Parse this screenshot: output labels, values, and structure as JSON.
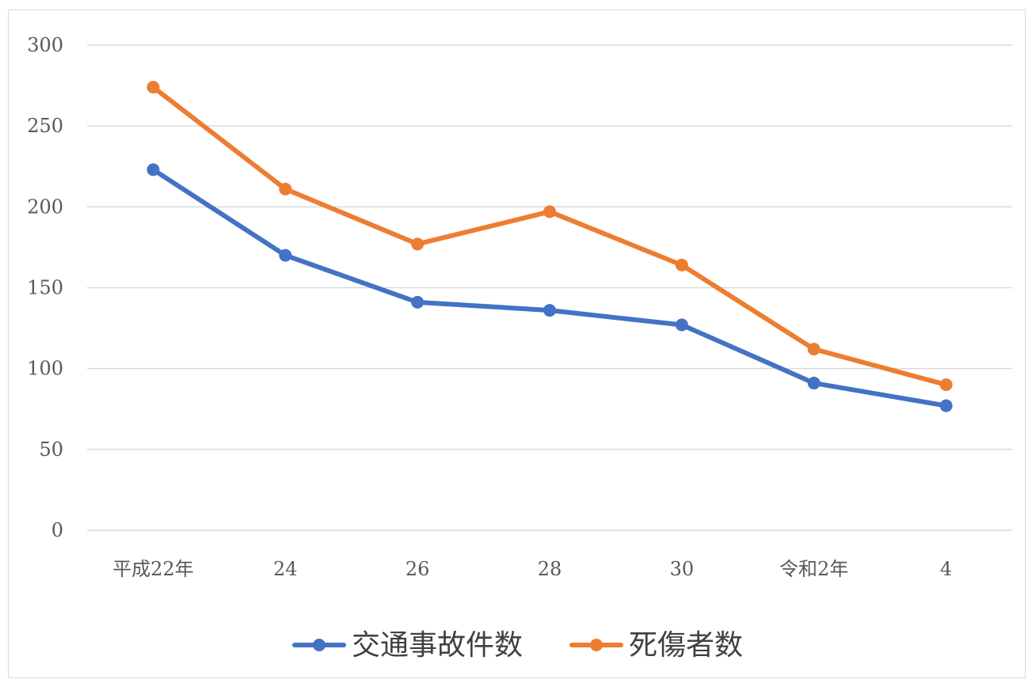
{
  "chart_data": {
    "type": "line",
    "categories": [
      "平成22年",
      "24",
      "26",
      "28",
      "30",
      "令和2年",
      "4"
    ],
    "ylim": [
      0,
      300
    ],
    "yticks": [
      0,
      50,
      100,
      150,
      200,
      250,
      300
    ],
    "grid": true,
    "legend_position": "bottom",
    "series": [
      {
        "name": "交通事故件数",
        "color": "#4472c4",
        "values": [
          223,
          170,
          141,
          136,
          127,
          91,
          77
        ]
      },
      {
        "name": "死傷者数",
        "color": "#ed7d31",
        "values": [
          274,
          211,
          177,
          197,
          164,
          112,
          90
        ]
      }
    ]
  }
}
